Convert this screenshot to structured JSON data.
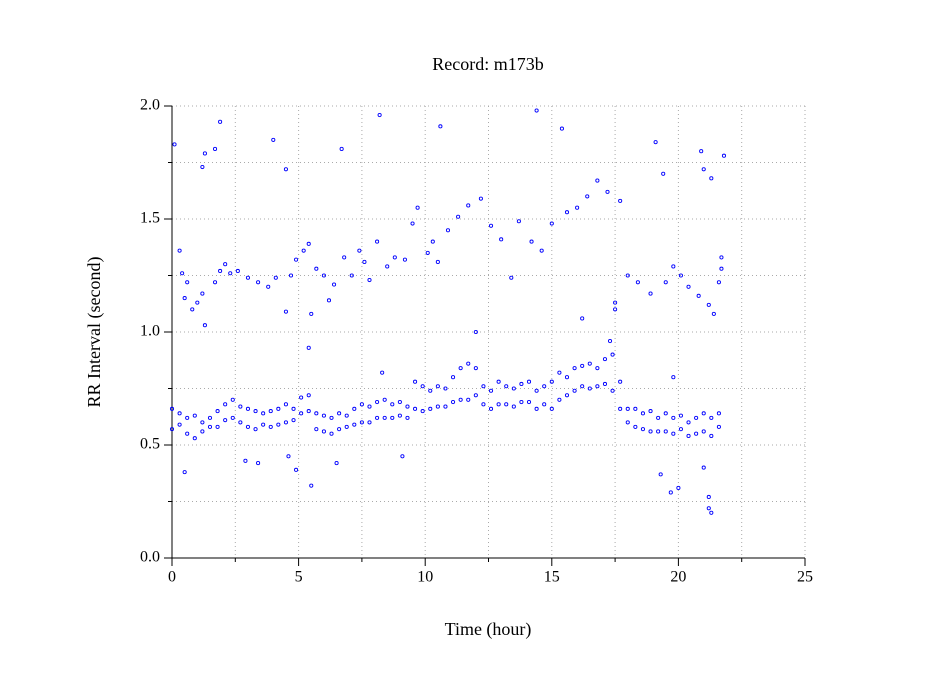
{
  "chart_data": {
    "type": "scatter",
    "title": "Record:  m173b",
    "xlabel": "Time (hour)",
    "ylabel": "RR Interval (second)",
    "color": "#0000ff",
    "xlim": [
      0,
      25
    ],
    "xticks": [
      0,
      5,
      10,
      15,
      20,
      25
    ],
    "xminorticks": [
      2.5,
      7.5,
      12.5,
      17.5,
      22.5
    ],
    "ylim": [
      0,
      2
    ],
    "yticks": [
      {
        "value": 0,
        "label": "0.0"
      },
      0.5,
      {
        "value": 1,
        "label": "1.0"
      },
      1.5,
      {
        "value": 2,
        "label": "2.0"
      }
    ],
    "yminorticks": [
      0.25,
      0.75,
      1.25,
      1.75
    ],
    "grid": true,
    "x": [
      0,
      0.3,
      0.6,
      0.9,
      1.2,
      1.5,
      1.8,
      2.1,
      2.4,
      2.7,
      3.0,
      3.3,
      3.6,
      3.9,
      4.2,
      4.5,
      4.8,
      5.1,
      5.4,
      5.7,
      6.0,
      6.3,
      6.6,
      6.9,
      7.2,
      7.5,
      7.8,
      8.1,
      8.4,
      8.7,
      9.0,
      9.3,
      9.6,
      9.9,
      10.2,
      10.5,
      10.8,
      11.1,
      11.4,
      11.7,
      12.0,
      12.3,
      12.6,
      12.9,
      13.2,
      13.5,
      13.8,
      14.1,
      14.4,
      14.7,
      15.0,
      15.3,
      15.6,
      15.9,
      16.2,
      16.5,
      16.8,
      17.1,
      17.4,
      17.7,
      18.0,
      18.3,
      18.6,
      18.9,
      19.2,
      19.5,
      19.8,
      20.1,
      20.4,
      20.7,
      21.0,
      21.3,
      21.6,
      0,
      0.3,
      0.6,
      0.9,
      1.2,
      1.5,
      1.8,
      2.1,
      2.4,
      2.7,
      3.0,
      3.3,
      3.6,
      3.9,
      4.2,
      4.5,
      4.8,
      5.1,
      5.4,
      5.7,
      6.0,
      6.3,
      6.6,
      6.9,
      7.2,
      7.5,
      7.8,
      8.1,
      8.4,
      8.7,
      9.0,
      9.3,
      9.6,
      9.9,
      10.2,
      10.5,
      10.8,
      11.1,
      11.4,
      11.7,
      12.0,
      12.3,
      12.6,
      12.9,
      13.2,
      13.5,
      13.8,
      14.1,
      14.4,
      14.7,
      15.0,
      15.3,
      15.6,
      15.9,
      16.2,
      16.5,
      16.8,
      17.1,
      17.4,
      17.7,
      18.0,
      18.3,
      18.6,
      18.9,
      19.2,
      19.5,
      19.8,
      20.1,
      20.4,
      20.7,
      21.0,
      21.3,
      21.6,
      0.1,
      0.3,
      0.4,
      0.6,
      0.5,
      0.8,
      1.0,
      1.2,
      1.3,
      1.2,
      1.3,
      1.7,
      1.9,
      1.7,
      1.9,
      2.1,
      2.3,
      2.6,
      3.0,
      3.4,
      3.8,
      4.0,
      4.1,
      4.5,
      4.5,
      4.7,
      4.9,
      5.2,
      5.4,
      5.5,
      5.7,
      6.0,
      6.2,
      6.4,
      6.7,
      6.8,
      7.1,
      7.4,
      7.6,
      7.8,
      8.1,
      8.2,
      8.5,
      8.8,
      9.2,
      9.5,
      9.7,
      10.1,
      10.3,
      10.5,
      10.6,
      10.9,
      11.3,
      11.7,
      12.2,
      12.6,
      13.0,
      13.4,
      13.7,
      14.2,
      14.4,
      14.6,
      15.0,
      15.4,
      15.6,
      16.0,
      16.4,
      16.8,
      17.2,
      17.7,
      17.3,
      17.5,
      18.0,
      18.4,
      18.9,
      19.1,
      19.4,
      19.5,
      19.8,
      20.1,
      20.4,
      20.8,
      20.9,
      21.0,
      21.2,
      21.3,
      21.4,
      21.6,
      21.7,
      21.8,
      21.7,
      0.5,
      2.9,
      3.4,
      4.6,
      4.9,
      5.5,
      6.5,
      9.1,
      19.3,
      19.7,
      20.0,
      21.2,
      21.3,
      21.2,
      21.0,
      5.4,
      12.0,
      16.2,
      17.5,
      8.3,
      19.8
    ],
    "values": [
      0.66,
      0.64,
      0.62,
      0.63,
      0.6,
      0.62,
      0.65,
      0.68,
      0.7,
      0.67,
      0.66,
      0.65,
      0.64,
      0.65,
      0.66,
      0.68,
      0.66,
      0.71,
      0.72,
      0.64,
      0.63,
      0.62,
      0.64,
      0.63,
      0.66,
      0.68,
      0.67,
      0.69,
      0.7,
      0.68,
      0.69,
      0.67,
      0.78,
      0.76,
      0.74,
      0.76,
      0.75,
      0.8,
      0.84,
      0.86,
      0.84,
      0.76,
      0.74,
      0.78,
      0.76,
      0.75,
      0.77,
      0.78,
      0.74,
      0.76,
      0.78,
      0.82,
      0.8,
      0.84,
      0.85,
      0.86,
      0.84,
      0.88,
      0.9,
      0.78,
      0.66,
      0.66,
      0.64,
      0.65,
      0.62,
      0.64,
      0.62,
      0.63,
      0.6,
      0.62,
      0.64,
      0.62,
      0.64,
      0.57,
      0.59,
      0.55,
      0.53,
      0.56,
      0.58,
      0.58,
      0.61,
      0.62,
      0.6,
      0.58,
      0.57,
      0.59,
      0.58,
      0.59,
      0.6,
      0.61,
      0.64,
      0.65,
      0.57,
      0.56,
      0.55,
      0.57,
      0.58,
      0.59,
      0.6,
      0.6,
      0.62,
      0.62,
      0.62,
      0.63,
      0.62,
      0.66,
      0.65,
      0.66,
      0.67,
      0.67,
      0.69,
      0.7,
      0.7,
      0.72,
      0.68,
      0.66,
      0.68,
      0.68,
      0.67,
      0.69,
      0.69,
      0.66,
      0.68,
      0.66,
      0.7,
      0.72,
      0.74,
      0.76,
      0.75,
      0.76,
      0.77,
      0.74,
      0.66,
      0.6,
      0.58,
      0.57,
      0.56,
      0.56,
      0.56,
      0.55,
      0.57,
      0.54,
      0.55,
      0.56,
      0.54,
      0.58,
      1.83,
      1.36,
      1.26,
      1.22,
      1.15,
      1.1,
      1.13,
      1.17,
      1.03,
      1.73,
      1.79,
      1.81,
      1.93,
      1.22,
      1.27,
      1.3,
      1.26,
      1.27,
      1.24,
      1.22,
      1.2,
      1.85,
      1.24,
      1.72,
      1.09,
      1.25,
      1.32,
      1.36,
      1.39,
      1.08,
      1.28,
      1.25,
      1.14,
      1.21,
      1.81,
      1.33,
      1.25,
      1.36,
      1.31,
      1.23,
      1.4,
      1.96,
      1.29,
      1.33,
      1.32,
      1.48,
      1.55,
      1.35,
      1.4,
      1.31,
      1.91,
      1.45,
      1.51,
      1.56,
      1.59,
      1.47,
      1.41,
      1.24,
      1.49,
      1.4,
      1.98,
      1.36,
      1.48,
      1.9,
      1.53,
      1.55,
      1.6,
      1.67,
      1.62,
      1.58,
      0.96,
      1.13,
      1.25,
      1.22,
      1.17,
      1.84,
      1.7,
      1.22,
      1.29,
      1.25,
      1.2,
      1.16,
      1.8,
      1.72,
      1.12,
      1.68,
      1.08,
      1.22,
      1.28,
      1.78,
      1.33,
      0.38,
      0.43,
      0.42,
      0.45,
      0.39,
      0.32,
      0.42,
      0.45,
      0.37,
      0.29,
      0.31,
      0.22,
      0.2,
      0.27,
      0.4,
      0.93,
      1.0,
      1.06,
      1.1,
      0.82,
      0.8
    ]
  }
}
